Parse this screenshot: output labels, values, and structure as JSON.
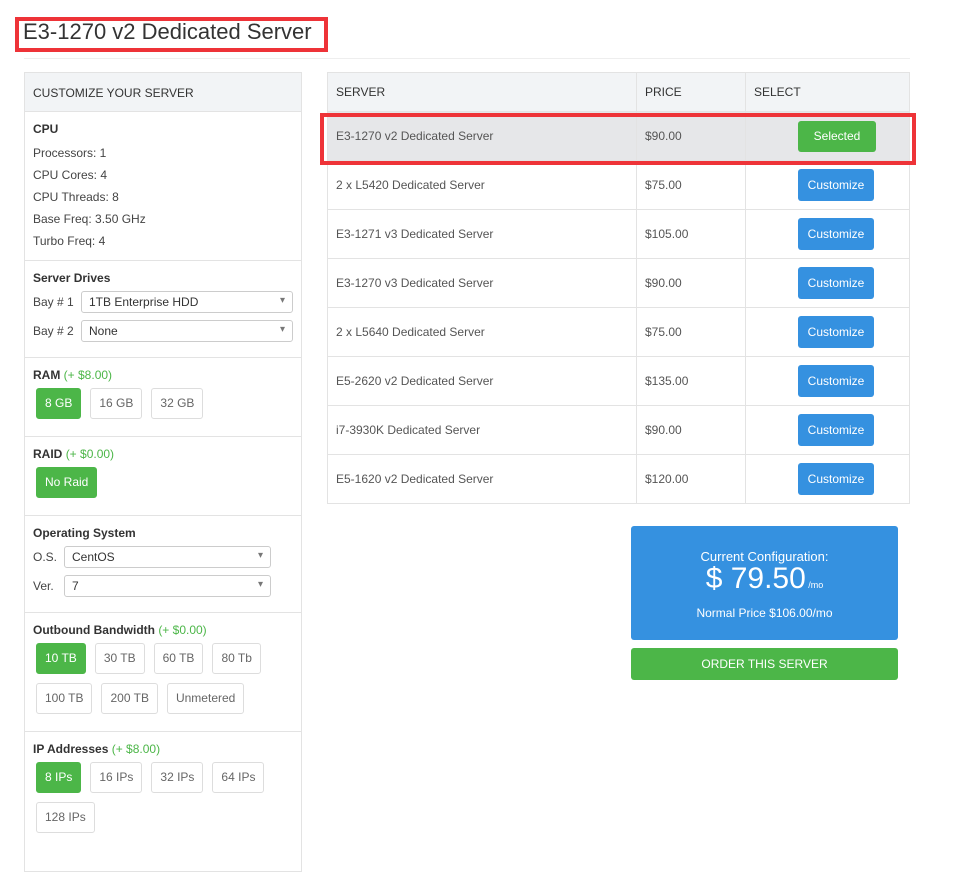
{
  "page_title": "E3-1270 v2 Dedicated Server",
  "customize": {
    "header": "CUSTOMIZE YOUR SERVER",
    "cpu": {
      "title": "CPU",
      "lines": [
        "Processors: 1",
        "CPU Cores: 4",
        "CPU Threads: 8",
        "Base Freq: 3.50 GHz",
        "Turbo Freq: 4"
      ]
    },
    "drives": {
      "title": "Server Drives",
      "bay1_label": "Bay # 1",
      "bay1_value": "1TB Enterprise HDD",
      "bay2_label": "Bay # 2",
      "bay2_value": "None"
    },
    "ram": {
      "title": "RAM",
      "add": "(+ $8.00)",
      "options": [
        "8 GB",
        "16 GB",
        "32 GB"
      ],
      "selected": 0
    },
    "raid": {
      "title": "RAID",
      "add": "(+ $0.00)",
      "options": [
        "No Raid"
      ],
      "selected": 0
    },
    "os": {
      "title": "Operating System",
      "os_label": "O.S.",
      "os_value": "CentOS",
      "ver_label": "Ver.",
      "ver_value": "7"
    },
    "bandwidth": {
      "title": "Outbound Bandwidth",
      "add": "(+ $0.00)",
      "options": [
        "10 TB",
        "30 TB",
        "60 TB",
        "80 Tb",
        "100 TB",
        "200 TB",
        "Unmetered"
      ],
      "selected": 0
    },
    "ip": {
      "title": "IP Addresses",
      "add": "(+ $8.00)",
      "options": [
        "8 IPs",
        "16 IPs",
        "32 IPs",
        "64 IPs",
        "128 IPs"
      ],
      "selected": 0
    }
  },
  "table": {
    "headers": [
      "SERVER",
      "PRICE",
      "SELECT"
    ],
    "rows": [
      {
        "server": "E3-1270 v2 Dedicated Server",
        "price": "$90.00",
        "action": "Selected"
      },
      {
        "server": "2 x L5420 Dedicated Server",
        "price": "$75.00",
        "action": "Customize"
      },
      {
        "server": "E3-1271 v3 Dedicated Server",
        "price": "$105.00",
        "action": "Customize"
      },
      {
        "server": "E3-1270 v3 Dedicated Server",
        "price": "$90.00",
        "action": "Customize"
      },
      {
        "server": "2 x L5640 Dedicated Server",
        "price": "$75.00",
        "action": "Customize"
      },
      {
        "server": "E5-2620 v2 Dedicated Server",
        "price": "$135.00",
        "action": "Customize"
      },
      {
        "server": "i7-3930K Dedicated Server",
        "price": "$90.00",
        "action": "Customize"
      },
      {
        "server": "E5-1620 v2 Dedicated Server",
        "price": "$120.00",
        "action": "Customize"
      }
    ]
  },
  "summary": {
    "label": "Current Configuration:",
    "price": "$ 79.50",
    "unit": "/mo",
    "normal": "Normal Price $106.00/mo",
    "order": "ORDER THIS SERVER"
  },
  "colors": {
    "green": "#4cb648",
    "blue": "#3591e0",
    "highlight": "#ee3338"
  }
}
